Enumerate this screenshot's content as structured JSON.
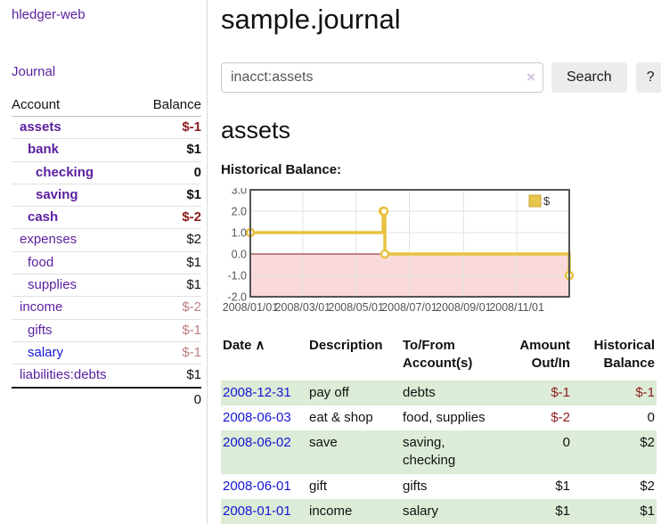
{
  "brand": "hledger-web",
  "nav": {
    "journal": "Journal"
  },
  "sidebar": {
    "headers": {
      "account": "Account",
      "balance": "Balance"
    },
    "accounts": [
      {
        "name": "assets",
        "balance": "$-1",
        "indent": 1,
        "current": true,
        "balance_style": "neg-strong",
        "link_color": "purple"
      },
      {
        "name": "bank",
        "balance": "$1",
        "indent": 2,
        "current": true,
        "balance_style": "",
        "link_color": "purple"
      },
      {
        "name": "checking",
        "balance": "0",
        "indent": 3,
        "current": true,
        "balance_style": "",
        "link_color": "purple"
      },
      {
        "name": "saving",
        "balance": "$1",
        "indent": 3,
        "current": true,
        "balance_style": "",
        "link_color": "purple"
      },
      {
        "name": "cash",
        "balance": "$-2",
        "indent": 2,
        "current": true,
        "balance_style": "neg-strong",
        "link_color": "purple"
      },
      {
        "name": "expenses",
        "balance": "$2",
        "indent": 1,
        "current": false,
        "balance_style": "",
        "link_color": "purple"
      },
      {
        "name": "food",
        "balance": "$1",
        "indent": 2,
        "current": false,
        "balance_style": "",
        "link_color": "purple"
      },
      {
        "name": "supplies",
        "balance": "$1",
        "indent": 2,
        "current": false,
        "balance_style": "",
        "link_color": "purple"
      },
      {
        "name": "income",
        "balance": "$-2",
        "indent": 1,
        "current": false,
        "balance_style": "neg-soft",
        "link_color": "purple"
      },
      {
        "name": "gifts",
        "balance": "$-1",
        "indent": 2,
        "current": false,
        "balance_style": "neg-soft",
        "link_color": "purple"
      },
      {
        "name": "salary",
        "balance": "$-1",
        "indent": 2,
        "current": false,
        "balance_style": "neg-soft",
        "link_color": "blue"
      },
      {
        "name": "liabilities:debts",
        "balance": "$1",
        "indent": 1,
        "current": false,
        "balance_style": "",
        "link_color": "purple"
      }
    ],
    "total": "0"
  },
  "main": {
    "title": "sample.journal",
    "search": {
      "value": "inacct:assets",
      "clear_icon": "×",
      "search_button": "Search",
      "help_button": "?"
    },
    "account_heading": "assets",
    "chart_title": "Historical Balance:"
  },
  "chart_data": {
    "type": "line",
    "step": true,
    "title": "Historical Balance",
    "series": [
      {
        "name": "$",
        "points": [
          [
            "2008-01-01",
            1.0
          ],
          [
            "2008-06-01",
            2.0
          ],
          [
            "2008-06-02",
            2.0
          ],
          [
            "2008-06-03",
            0.0
          ],
          [
            "2008-12-31",
            -1.0
          ]
        ]
      }
    ],
    "x_domain": [
      "2008-01-01",
      "2008-12-31"
    ],
    "ylim": [
      -2.0,
      3.0
    ],
    "yticks": [
      3.0,
      2.0,
      1.0,
      0.0,
      -1.0,
      -2.0
    ],
    "xticks": [
      "2008/01/01",
      "2008/03/01",
      "2008/05/01",
      "2008/07/01",
      "2008/09/01",
      "2008/11/01"
    ],
    "legend": {
      "label": "$",
      "position": "top-right"
    },
    "grid": true,
    "colors": {
      "line": "#e8c240",
      "marker_fill": "#ffffff",
      "legend_square": "#e8c64b",
      "legend_square_border": "#c9a53a",
      "negative_region": "#f9d9d9",
      "zero_line": "#8b1a1a",
      "grid": "#e2e2e2",
      "border": "#545454",
      "tick_text": "#545454"
    }
  },
  "transactions": {
    "headers": {
      "date": "Date",
      "sort_indicator": "∧",
      "description": "Description",
      "accounts": "To/From Account(s)",
      "amount": "Amount Out/In",
      "balance": "Historical Balance"
    },
    "rows": [
      {
        "date": "2008-12-31",
        "description": "pay off",
        "accounts": "debts",
        "amount": "$-1",
        "amount_negative": true,
        "balance": "$-1",
        "balance_negative": true
      },
      {
        "date": "2008-06-03",
        "description": "eat & shop",
        "accounts": "food, supplies",
        "amount": "$-2",
        "amount_negative": true,
        "balance": "0",
        "balance_negative": false
      },
      {
        "date": "2008-06-02",
        "description": "save",
        "accounts": "saving, checking",
        "amount": "0",
        "amount_negative": false,
        "balance": "$2",
        "balance_negative": false
      },
      {
        "date": "2008-06-01",
        "description": "gift",
        "accounts": "gifts",
        "amount": "$1",
        "amount_negative": false,
        "balance": "$2",
        "balance_negative": false
      },
      {
        "date": "2008-01-01",
        "description": "income",
        "accounts": "salary",
        "amount": "$1",
        "amount_negative": false,
        "balance": "$1",
        "balance_negative": false
      }
    ]
  },
  "colors": {
    "link_purple": "#5b1f9e",
    "link_blue": "#1515d6",
    "negative_strong": "#8b1d1d",
    "negative_soft": "#bd7f7f",
    "row_stripe_green": "#dcecd7"
  }
}
